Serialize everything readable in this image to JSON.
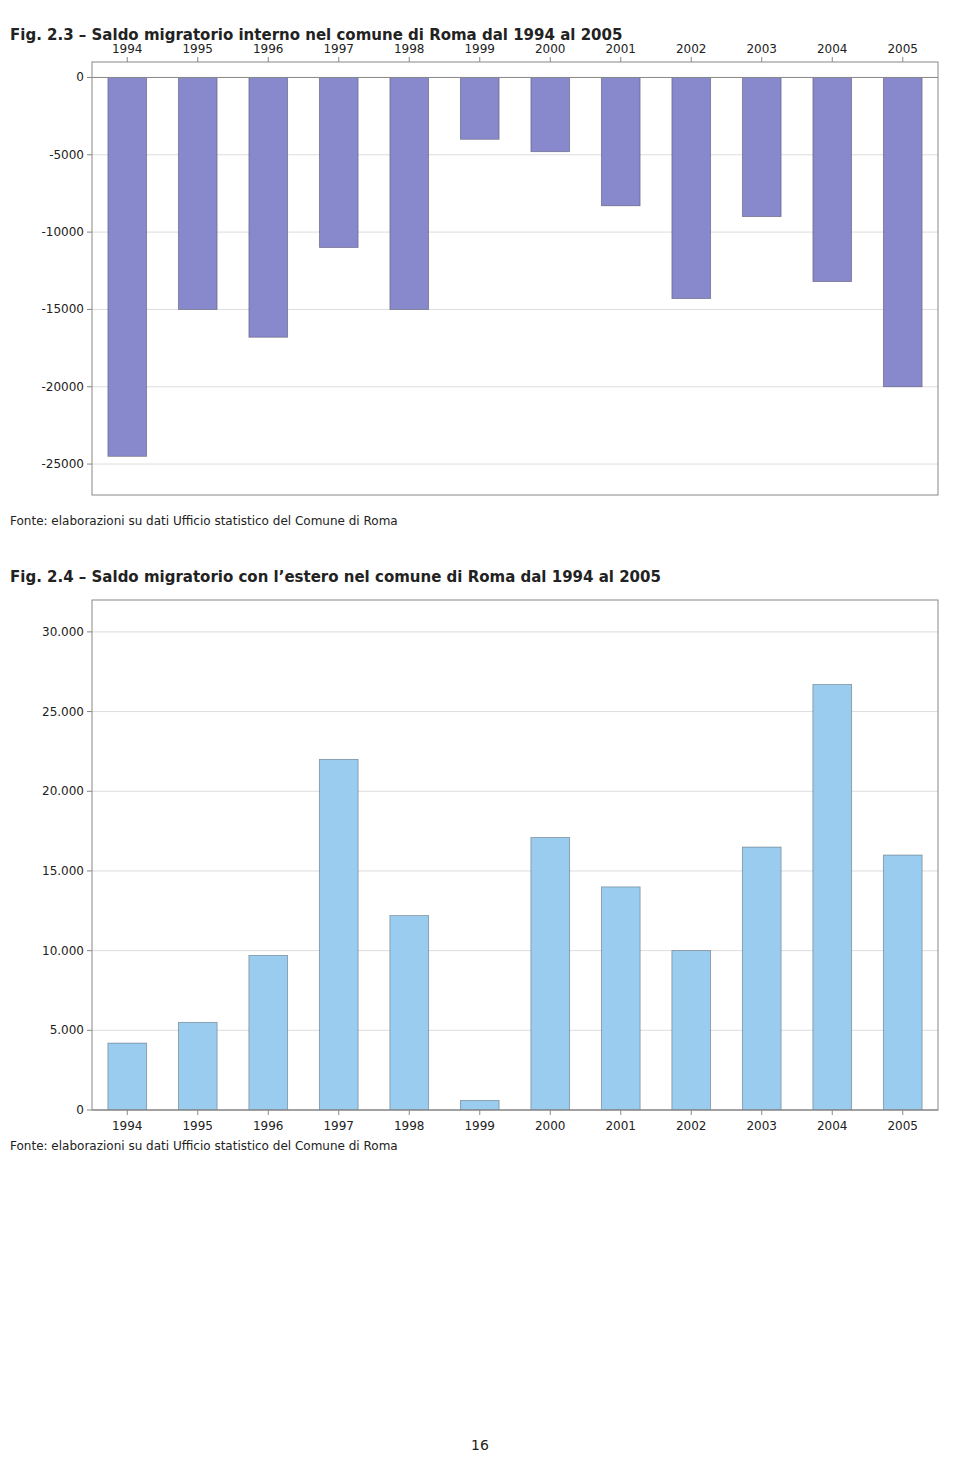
{
  "chart_data": [
    {
      "type": "bar",
      "title": "Fig. 2.3 – Saldo migratorio interno nel comune di Roma dal 1994 al 2005",
      "annotations": [
        "Fonte: elaborazioni su dati Ufficio statistico del Comune di Roma"
      ],
      "categories": [
        "1994",
        "1995",
        "1996",
        "1997",
        "1998",
        "1999",
        "2000",
        "2001",
        "2002",
        "2003",
        "2004",
        "2005"
      ],
      "values": [
        -24500,
        -15000,
        -16800,
        -11000,
        -15000,
        -4000,
        -4800,
        -8300,
        -14300,
        -9000,
        -13200,
        -20000
      ],
      "color": "#8888cc",
      "ylim": [
        -27000,
        1000
      ],
      "yticks": [
        0,
        -5000,
        -10000,
        -15000,
        -20000,
        -25000
      ],
      "grid": true
    },
    {
      "type": "bar",
      "title": "Fig. 2.4 – Saldo migratorio con l’estero nel comune di Roma dal 1994 al 2005",
      "annotations": [
        "Fonte: elaborazioni su dati Ufficio statistico del Comune di Roma"
      ],
      "categories": [
        "1994",
        "1995",
        "1996",
        "1997",
        "1998",
        "1999",
        "2000",
        "2001",
        "2002",
        "2003",
        "2004",
        "2005"
      ],
      "values": [
        4200,
        5500,
        9700,
        22000,
        12200,
        600,
        17100,
        14000,
        10000,
        16500,
        26700,
        16000
      ],
      "color": "#99CCEE",
      "ylim": [
        0,
        32000
      ],
      "yticks": [
        0,
        {
          "value": 5000,
          "label": "5.000"
        },
        {
          "value": 10000,
          "label": "10.000"
        },
        {
          "value": 15000,
          "label": "15.000"
        },
        {
          "value": 20000,
          "label": "20.000"
        },
        {
          "value": 25000,
          "label": "25.000"
        },
        {
          "value": 30000,
          "label": "30.000"
        }
      ],
      "grid": true
    }
  ],
  "page_number": "16"
}
